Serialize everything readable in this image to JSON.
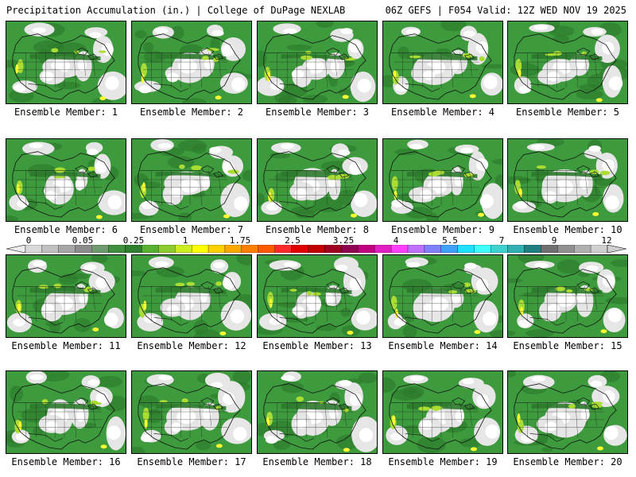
{
  "header": {
    "left": "Precipitation Accumulation (in.) | College of DuPage NEXLAB",
    "right": "06Z GEFS | F054 Valid: 12Z WED NOV 19 2025"
  },
  "panels": [
    {
      "label": "Ensemble Member: 1"
    },
    {
      "label": "Ensemble Member: 2"
    },
    {
      "label": "Ensemble Member: 3"
    },
    {
      "label": "Ensemble Member: 4"
    },
    {
      "label": "Ensemble Member: 5"
    },
    {
      "label": "Ensemble Member: 6"
    },
    {
      "label": "Ensemble Member: 7"
    },
    {
      "label": "Ensemble Member: 8"
    },
    {
      "label": "Ensemble Member: 9"
    },
    {
      "label": "Ensemble Member: 10"
    },
    {
      "label": "Ensemble Member: 11"
    },
    {
      "label": "Ensemble Member: 12"
    },
    {
      "label": "Ensemble Member: 13"
    },
    {
      "label": "Ensemble Member: 14"
    },
    {
      "label": "Ensemble Member: 15"
    },
    {
      "label": "Ensemble Member: 16"
    },
    {
      "label": "Ensemble Member: 17"
    },
    {
      "label": "Ensemble Member: 18"
    },
    {
      "label": "Ensemble Member: 19"
    },
    {
      "label": "Ensemble Member: 20"
    }
  ],
  "colorbar": {
    "labels": [
      "0",
      "0.05",
      "0.25",
      "1",
      "1.75",
      "2.5",
      "3.25",
      "4",
      "5.5",
      "7",
      "9",
      "12"
    ],
    "colors": [
      "#d9d9d9",
      "#c0c0c0",
      "#a6a6a6",
      "#8c8c8c",
      "#6e9a6e",
      "#3f8f3f",
      "#2f7f2f",
      "#58b030",
      "#8ccc30",
      "#ccee20",
      "#ffff00",
      "#ffd000",
      "#ffa800",
      "#ff8000",
      "#ff5a00",
      "#ff2a2a",
      "#e00000",
      "#c00000",
      "#a00020",
      "#900050",
      "#c00080",
      "#e020c0",
      "#ff40ff",
      "#c070ff",
      "#8080ff",
      "#40a0ff",
      "#20e0ff",
      "#40ffff",
      "#40d0d0",
      "#30b0b0",
      "#208080",
      "#707070",
      "#909090",
      "#b0b0b0",
      "#d0d0d0"
    ],
    "palette": {
      "green": "#3d9a3d",
      "dark_green": "#2c7a2c",
      "light_gray": "#e6e6e6",
      "white": "#ffffff",
      "yellow": "#ffff33",
      "lime": "#aadd33"
    }
  }
}
